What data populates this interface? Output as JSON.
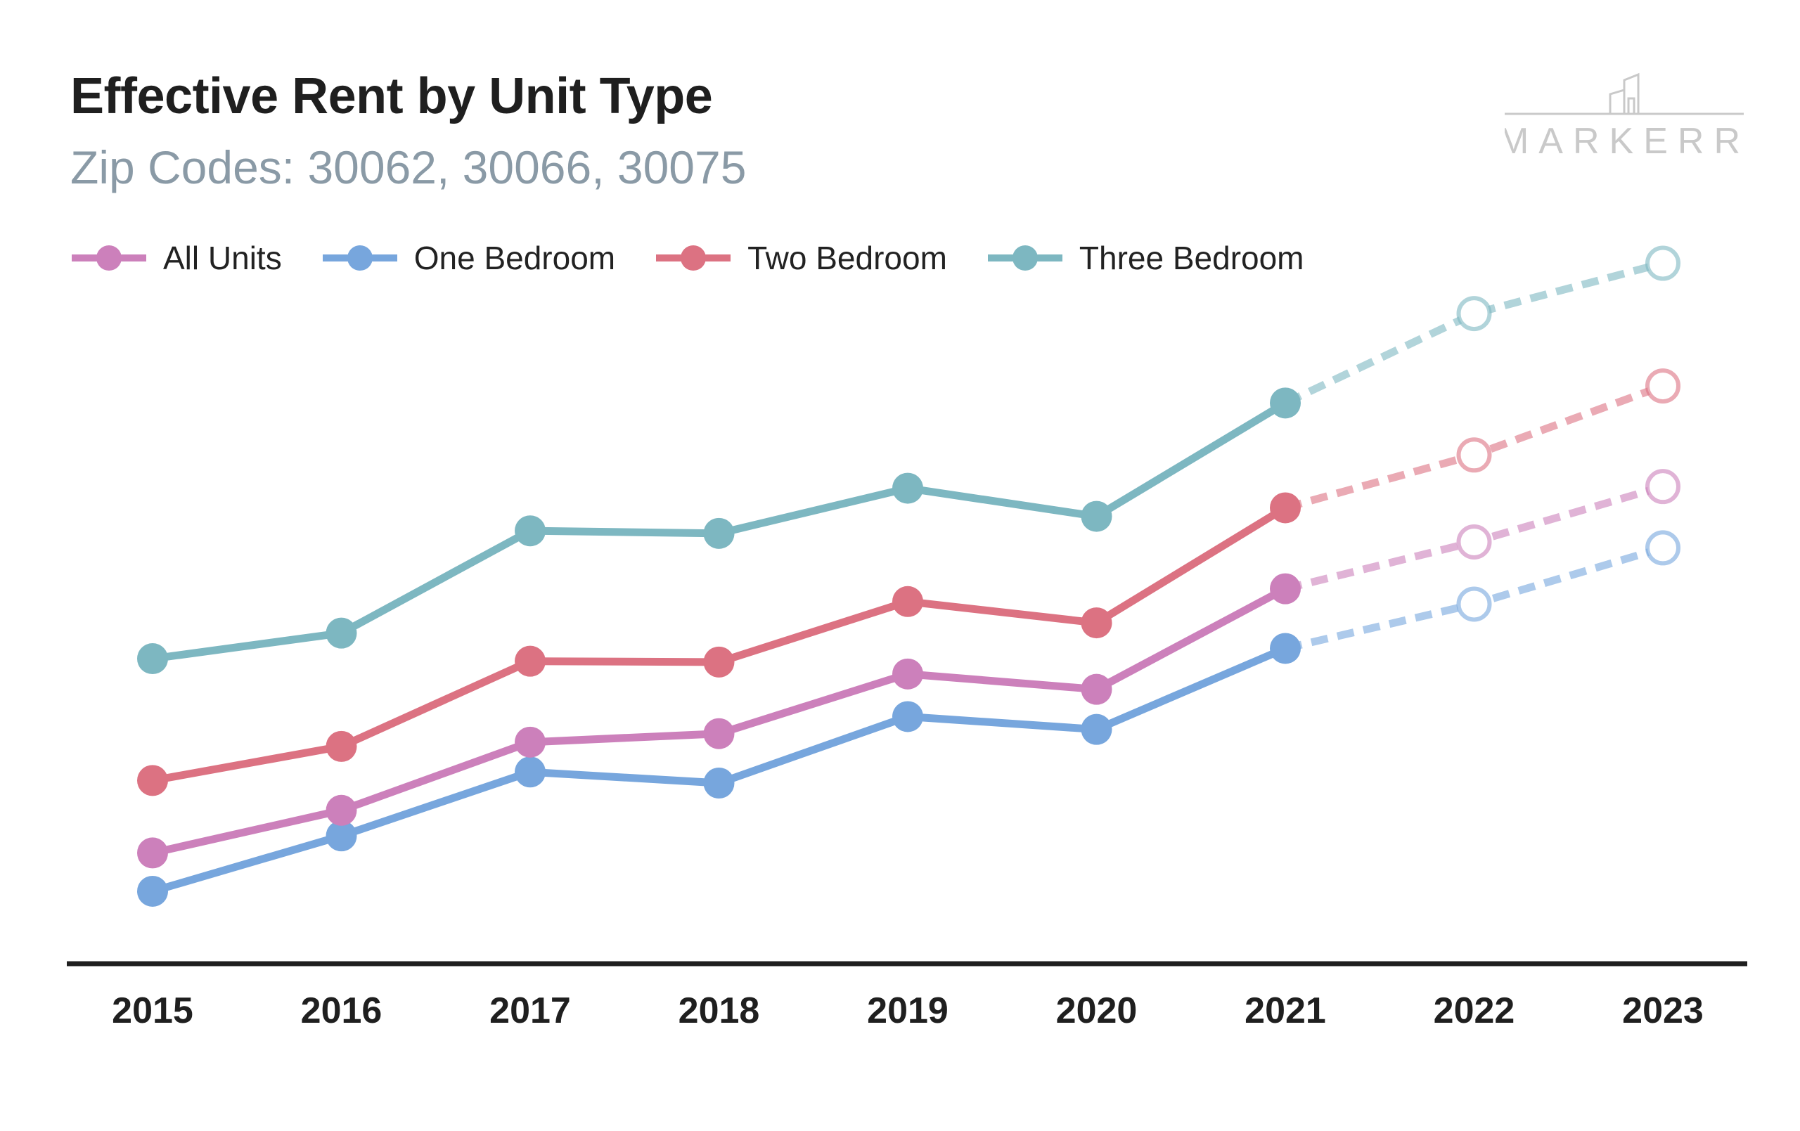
{
  "title": "Effective Rent by Unit Type",
  "subtitle": "Zip Codes: 30062, 30066, 30075",
  "logo": {
    "text": "MARKERR",
    "icon": "building-icon"
  },
  "colors": {
    "All Units": "#cc80bb",
    "One Bedroom": "#77a6dd",
    "Two Bedroom": "#dc7282",
    "Three Bedroom": "#7db7c1",
    "axis": "#1f1f1f"
  },
  "chart_data": {
    "type": "line",
    "x": [
      "2015",
      "2016",
      "2017",
      "2018",
      "2019",
      "2020",
      "2021",
      "2022",
      "2023"
    ],
    "forecast_from_index": 6,
    "y_axis_labels_shown": false,
    "grid": false,
    "legend_position": "top-left",
    "series": [
      {
        "name": "All Units",
        "values": [
          1030,
          1080,
          1160,
          1170,
          1240,
          1222,
          1340,
          1395,
          1460
        ]
      },
      {
        "name": "One Bedroom",
        "values": [
          985,
          1050,
          1125,
          1112,
          1190,
          1175,
          1270,
          1322,
          1388
        ]
      },
      {
        "name": "Two Bedroom",
        "values": [
          1115,
          1155,
          1255,
          1254,
          1325,
          1300,
          1435,
          1497,
          1578
        ]
      },
      {
        "name": "Three Bedroom",
        "values": [
          1258,
          1288,
          1408,
          1405,
          1458,
          1425,
          1558,
          1663,
          1722
        ]
      }
    ]
  }
}
